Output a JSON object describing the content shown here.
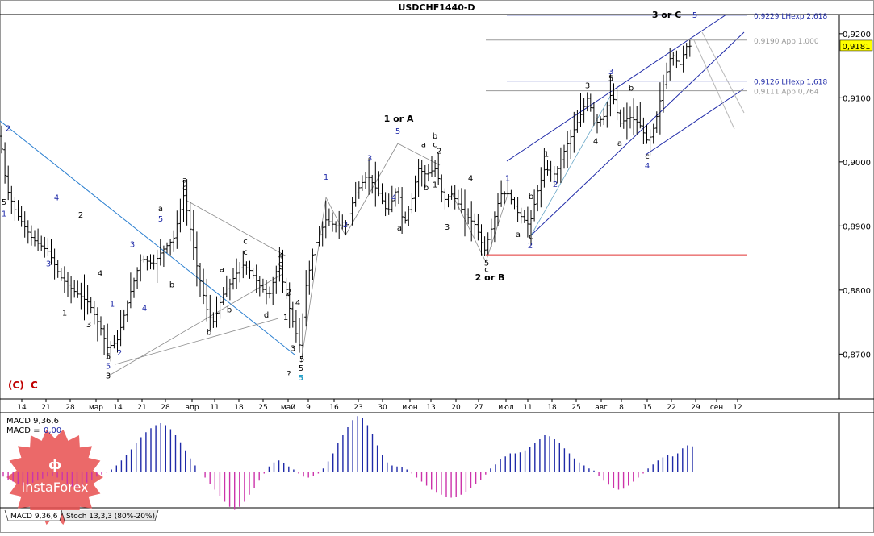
{
  "title": "USDCHF1440-D",
  "chart_data": {
    "type": "line",
    "symbol": "USDCHF1440-D",
    "ylim": [
      0.863,
      0.923
    ],
    "yticks": [
      "0,9200",
      "0,9100",
      "0,9000",
      "0,8900",
      "0,8800",
      "0,8700"
    ],
    "ytick_values": [
      0.92,
      0.91,
      0.9,
      0.89,
      0.88,
      0.87
    ],
    "current_price_label": "0,9181",
    "current_price": 0.9181,
    "x_labels": [
      "14",
      "21",
      "28",
      "мар",
      "14",
      "21",
      "28",
      "апр",
      "11",
      "18",
      "25",
      "май",
      "9",
      "16",
      "23",
      "30",
      "июн",
      "13",
      "20",
      "27",
      "июл",
      "11",
      "18",
      "25",
      "авг",
      "8",
      "15",
      "22",
      "29",
      "сен",
      "12"
    ],
    "price_path": [
      [
        0,
        0.904
      ],
      [
        8,
        0.896
      ],
      [
        20,
        0.892
      ],
      [
        40,
        0.888
      ],
      [
        60,
        0.886
      ],
      [
        75,
        0.882
      ],
      [
        90,
        0.88
      ],
      [
        110,
        0.878
      ],
      [
        125,
        0.874
      ],
      [
        133,
        0.871
      ],
      [
        145,
        0.872
      ],
      [
        160,
        0.879
      ],
      [
        175,
        0.885
      ],
      [
        190,
        0.884
      ],
      [
        200,
        0.886
      ],
      [
        215,
        0.888
      ],
      [
        228,
        0.895
      ],
      [
        235,
        0.89
      ],
      [
        245,
        0.883
      ],
      [
        258,
        0.876
      ],
      [
        265,
        0.875
      ],
      [
        275,
        0.879
      ],
      [
        285,
        0.881
      ],
      [
        300,
        0.884
      ],
      [
        310,
        0.883
      ],
      [
        320,
        0.881
      ],
      [
        333,
        0.879
      ],
      [
        345,
        0.884
      ],
      [
        355,
        0.879
      ],
      [
        365,
        0.874
      ],
      [
        372,
        0.871
      ],
      [
        378,
        0.88
      ],
      [
        390,
        0.887
      ],
      [
        404,
        0.891
      ],
      [
        415,
        0.89
      ],
      [
        428,
        0.89
      ],
      [
        440,
        0.895
      ],
      [
        455,
        0.898
      ],
      [
        470,
        0.895
      ],
      [
        480,
        0.892
      ],
      [
        492,
        0.896
      ],
      [
        500,
        0.89
      ],
      [
        510,
        0.894
      ],
      [
        518,
        0.899
      ],
      [
        528,
        0.898
      ],
      [
        540,
        0.899
      ],
      [
        550,
        0.894
      ],
      [
        560,
        0.895
      ],
      [
        575,
        0.892
      ],
      [
        590,
        0.89
      ],
      [
        600,
        0.886
      ],
      [
        610,
        0.89
      ],
      [
        620,
        0.895
      ],
      [
        630,
        0.895
      ],
      [
        642,
        0.892
      ],
      [
        656,
        0.89
      ],
      [
        665,
        0.895
      ],
      [
        675,
        0.899
      ],
      [
        688,
        0.898
      ],
      [
        700,
        0.902
      ],
      [
        715,
        0.906
      ],
      [
        728,
        0.91
      ],
      [
        738,
        0.906
      ],
      [
        748,
        0.907
      ],
      [
        758,
        0.911
      ],
      [
        768,
        0.906
      ],
      [
        780,
        0.907
      ],
      [
        792,
        0.906
      ],
      [
        803,
        0.903
      ],
      [
        812,
        0.906
      ],
      [
        822,
        0.912
      ],
      [
        832,
        0.917
      ],
      [
        842,
        0.915
      ],
      [
        850,
        0.918
      ],
      [
        857,
        0.9181
      ]
    ],
    "h_levels": [
      {
        "y": 0.9229,
        "label": "0,9229 LHexp 2,618",
        "color": "#1f2aa8"
      },
      {
        "y": 0.919,
        "label": "0,9190 App 1,000",
        "color": "#9a9a9a"
      },
      {
        "y": 0.9126,
        "label": "0,9126 LHexp 1,618",
        "color": "#1f2aa8"
      },
      {
        "y": 0.9111,
        "label": "0,9111 App 0,764",
        "color": "#9a9a9a"
      },
      {
        "y": 0.8855,
        "label": "",
        "color": "#e03030"
      }
    ],
    "wave_labels": [
      {
        "t": "2",
        "x": 10,
        "y": 0.9048,
        "c": "#1f2aa8"
      },
      {
        "t": "5",
        "x": 5,
        "y": 0.8933,
        "c": "#000000"
      },
      {
        "t": "1",
        "x": 5,
        "y": 0.8915,
        "c": "#1f2aa8"
      },
      {
        "t": "4",
        "x": 70,
        "y": 0.894,
        "c": "#1f2aa8"
      },
      {
        "t": "3",
        "x": 60,
        "y": 0.8837,
        "c": "#1f2aa8"
      },
      {
        "t": "2",
        "x": 100,
        "y": 0.8913,
        "c": "#000000"
      },
      {
        "t": "1",
        "x": 80,
        "y": 0.876,
        "c": "#000000"
      },
      {
        "t": "4",
        "x": 124,
        "y": 0.8822,
        "c": "#000000"
      },
      {
        "t": "3",
        "x": 110,
        "y": 0.8742,
        "c": "#000000"
      },
      {
        "t": "1",
        "x": 139,
        "y": 0.8774,
        "c": "#1f2aa8"
      },
      {
        "t": "2",
        "x": 148,
        "y": 0.8698,
        "c": "#1f2aa8"
      },
      {
        "t": "5",
        "x": 134,
        "y": 0.8692,
        "c": "#000000"
      },
      {
        "t": "5",
        "x": 134,
        "y": 0.8677,
        "c": "#1f2aa8"
      },
      {
        "t": "3",
        "x": 134,
        "y": 0.8662,
        "c": "#000000"
      },
      {
        "t": "3",
        "x": 164,
        "y": 0.8867,
        "c": "#1f2aa8"
      },
      {
        "t": "4",
        "x": 179,
        "y": 0.8768,
        "c": "#1f2aa8"
      },
      {
        "t": "5",
        "x": 199,
        "y": 0.8907,
        "c": "#1f2aa8"
      },
      {
        "t": "a",
        "x": 199,
        "y": 0.8923,
        "c": "#000000"
      },
      {
        "t": "b",
        "x": 213,
        "y": 0.8804,
        "c": "#000000"
      },
      {
        "t": "a",
        "x": 229,
        "y": 0.8968,
        "c": "#000000"
      },
      {
        "t": "c",
        "x": 229,
        "y": 0.8956,
        "c": "#000000"
      },
      {
        "t": "b",
        "x": 259,
        "y": 0.873,
        "c": "#000000"
      },
      {
        "t": "a",
        "x": 275,
        "y": 0.8828,
        "c": "#000000"
      },
      {
        "t": "b",
        "x": 284,
        "y": 0.8765,
        "c": "#000000"
      },
      {
        "t": "c",
        "x": 304,
        "y": 0.8872,
        "c": "#000000"
      },
      {
        "t": "c",
        "x": 304,
        "y": 0.8855,
        "c": "#000000"
      },
      {
        "t": "4",
        "x": 348,
        "y": 0.8849,
        "c": "#000000"
      },
      {
        "t": "e",
        "x": 348,
        "y": 0.8837,
        "c": "#000000"
      },
      {
        "t": "d",
        "x": 330,
        "y": 0.8757,
        "c": "#000000"
      },
      {
        "t": "2",
        "x": 358,
        "y": 0.8793,
        "c": "#000000"
      },
      {
        "t": "4",
        "x": 369,
        "y": 0.8776,
        "c": "#000000"
      },
      {
        "t": "1",
        "x": 354,
        "y": 0.8753,
        "c": "#000000"
      },
      {
        "t": "3",
        "x": 363,
        "y": 0.8705,
        "c": "#000000"
      },
      {
        "t": "5",
        "x": 374,
        "y": 0.8688,
        "c": "#000000"
      },
      {
        "t": "5",
        "x": 373,
        "y": 0.8674,
        "c": "#000000"
      },
      {
        "t": "?",
        "x": 358,
        "y": 0.8665,
        "c": "#000000"
      },
      {
        "t": "5",
        "x": 373,
        "y": 0.8659,
        "c": "#2aa0c8"
      },
      {
        "t": "1",
        "x": 404,
        "y": 0.8972,
        "c": "#1f2aa8"
      },
      {
        "t": "2",
        "x": 428,
        "y": 0.8898,
        "c": "#1f2aa8"
      },
      {
        "t": "3",
        "x": 458,
        "y": 0.9002,
        "c": "#1f2aa8"
      },
      {
        "t": "4",
        "x": 488,
        "y": 0.894,
        "c": "#1f2aa8"
      },
      {
        "t": "5",
        "x": 493,
        "y": 0.9044,
        "c": "#1f2aa8"
      },
      {
        "t": "1 or A",
        "x": 494,
        "y": 0.9063,
        "c": "#000000"
      },
      {
        "t": "a",
        "x": 495,
        "y": 0.8893,
        "c": "#000000"
      },
      {
        "t": "a",
        "x": 525,
        "y": 0.9023,
        "c": "#000000"
      },
      {
        "t": "b",
        "x": 539,
        "y": 0.9036,
        "c": "#000000"
      },
      {
        "t": "c",
        "x": 539,
        "y": 0.9023,
        "c": "#000000"
      },
      {
        "t": "2",
        "x": 544,
        "y": 0.9013,
        "c": "#000000"
      },
      {
        "t": "b",
        "x": 528,
        "y": 0.8956,
        "c": "#000000"
      },
      {
        "t": "1",
        "x": 539,
        "y": 0.896,
        "c": "#000000"
      },
      {
        "t": "4",
        "x": 583,
        "y": 0.897,
        "c": "#000000"
      },
      {
        "t": "3",
        "x": 554,
        "y": 0.8894,
        "c": "#000000"
      },
      {
        "t": "5",
        "x": 603,
        "y": 0.8838,
        "c": "#000000"
      },
      {
        "t": "c",
        "x": 603,
        "y": 0.8828,
        "c": "#000000"
      },
      {
        "t": "2 or B",
        "x": 607,
        "y": 0.8815,
        "c": "#000000"
      },
      {
        "t": "1",
        "x": 629,
        "y": 0.897,
        "c": "#1f2aa8"
      },
      {
        "t": "a",
        "x": 642,
        "y": 0.8883,
        "c": "#000000"
      },
      {
        "t": "b",
        "x": 658,
        "y": 0.8942,
        "c": "#000000"
      },
      {
        "t": "c",
        "x": 658,
        "y": 0.888,
        "c": "#000000"
      },
      {
        "t": "2",
        "x": 657,
        "y": 0.8865,
        "c": "#1f2aa8"
      },
      {
        "t": "1",
        "x": 677,
        "y": 0.9008,
        "c": "#000000"
      },
      {
        "t": "2",
        "x": 688,
        "y": 0.8961,
        "c": "#1f2aa8"
      },
      {
        "t": "3",
        "x": 728,
        "y": 0.9115,
        "c": "#000000"
      },
      {
        "t": "3",
        "x": 757,
        "y": 0.9137,
        "c": "#1f2aa8"
      },
      {
        "t": "5",
        "x": 757,
        "y": 0.9126,
        "c": "#000000"
      },
      {
        "t": "4",
        "x": 738,
        "y": 0.9028,
        "c": "#000000"
      },
      {
        "t": "b",
        "x": 782,
        "y": 0.9111,
        "c": "#000000"
      },
      {
        "t": "a",
        "x": 768,
        "y": 0.9025,
        "c": "#000000"
      },
      {
        "t": "c",
        "x": 802,
        "y": 0.9005,
        "c": "#000000"
      },
      {
        "t": "4",
        "x": 802,
        "y": 0.899,
        "c": "#1f2aa8"
      },
      {
        "t": "5",
        "x": 861,
        "y": 0.9225,
        "c": "#1f2aa8"
      },
      {
        "t": "3 or C",
        "x": 826,
        "y": 0.9225,
        "c": "#000000"
      }
    ],
    "corner_label": "(C)",
    "corner_label_2": "C",
    "macd": {
      "title": "MACD 9,36,6",
      "value_label": "MACD =",
      "value": "0,00",
      "histogram": [
        -0.5,
        -0.8,
        -1.0,
        -1.2,
        -1.4,
        -1.3,
        -1.1,
        -0.9,
        -0.7,
        -0.5,
        -0.4,
        -0.6,
        -0.9,
        -1.2,
        -1.5,
        -1.6,
        -1.4,
        -1.1,
        -0.8,
        -0.5,
        -0.3,
        -0.1,
        0.2,
        0.6,
        1.1,
        1.6,
        2.2,
        2.8,
        3.4,
        3.9,
        4.3,
        4.6,
        4.8,
        4.6,
        4.2,
        3.6,
        2.9,
        2.1,
        1.3,
        0.6,
        0.0,
        -0.6,
        -1.2,
        -1.8,
        -2.4,
        -3.0,
        -3.5,
        -3.8,
        -3.5,
        -3.0,
        -2.3,
        -1.6,
        -0.9,
        -0.2,
        0.5,
        0.9,
        1.1,
        0.8,
        0.5,
        0.2,
        -0.2,
        -0.5,
        -0.6,
        -0.4,
        -0.2,
        0.3,
        1.0,
        1.8,
        2.8,
        3.6,
        4.4,
        5.1,
        5.5,
        5.3,
        4.6,
        3.7,
        2.6,
        1.6,
        0.9,
        0.6,
        0.5,
        0.4,
        0.2,
        -0.2,
        -0.6,
        -1.0,
        -1.4,
        -1.8,
        -2.1,
        -2.3,
        -2.5,
        -2.6,
        -2.5,
        -2.3,
        -2.0,
        -1.6,
        -1.2,
        -0.8,
        -0.3,
        0.3,
        0.7,
        1.2,
        1.5,
        1.8,
        1.8,
        1.9,
        2.1,
        2.4,
        2.8,
        3.2,
        3.6,
        3.5,
        3.2,
        2.8,
        2.3,
        1.8,
        1.3,
        0.9,
        0.6,
        0.3,
        0.1,
        -0.4,
        -0.9,
        -1.3,
        -1.6,
        -1.8,
        -1.7,
        -1.4,
        -1.0,
        -0.6,
        -0.2,
        0.3,
        0.7,
        1.1,
        1.4,
        1.6,
        1.5,
        1.8,
        2.3,
        2.6,
        2.5
      ]
    },
    "tabs": [
      "MACD 9,36,6",
      "Stoch 13,3,3 (80%-20%)"
    ],
    "watermark": "InstaForex"
  }
}
